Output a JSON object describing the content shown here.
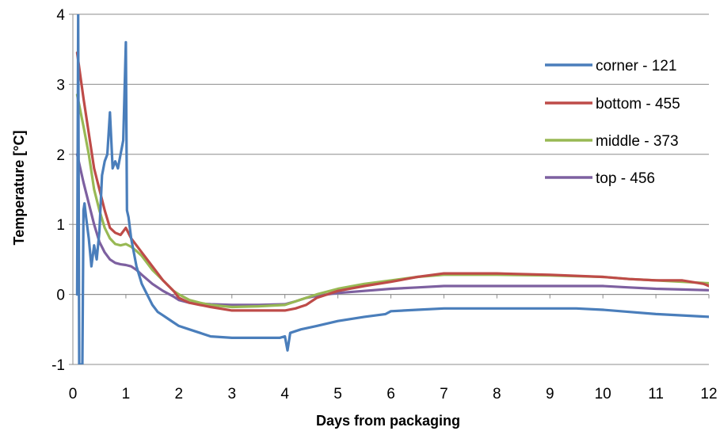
{
  "chart_data": {
    "type": "line",
    "title": "",
    "xlabel": "Days from packaging",
    "ylabel": "Temperature [°C]",
    "xlim": [
      0,
      12
    ],
    "ylim": [
      -1,
      4
    ],
    "x_ticks": [
      "0",
      "1",
      "2",
      "3",
      "4",
      "5",
      "6",
      "7",
      "8",
      "9",
      "10",
      "11",
      "12"
    ],
    "y_ticks": [
      "-1",
      "0",
      "1",
      "2",
      "3",
      "4"
    ],
    "grid": "horizontal",
    "legend_position": "right",
    "series": [
      {
        "name": "corner - 121",
        "color": "#4a7ebb",
        "x": [
          0.08,
          0.1,
          0.12,
          0.14,
          0.16,
          0.18,
          0.2,
          0.22,
          0.25,
          0.3,
          0.35,
          0.4,
          0.45,
          0.5,
          0.55,
          0.6,
          0.65,
          0.7,
          0.75,
          0.8,
          0.85,
          0.9,
          0.95,
          1.0,
          1.02,
          1.05,
          1.1,
          1.2,
          1.3,
          1.4,
          1.5,
          1.6,
          1.7,
          1.8,
          1.9,
          2.0,
          2.2,
          2.4,
          2.6,
          3.0,
          3.5,
          3.9,
          4.0,
          4.05,
          4.1,
          4.3,
          4.6,
          5.0,
          5.5,
          5.9,
          6.0,
          6.5,
          7.0,
          7.5,
          8.0,
          8.5,
          9.0,
          9.5,
          10.0,
          10.5,
          11.0,
          11.5,
          12.0
        ],
        "values": [
          0.0,
          4.0,
          -1.0,
          -1.0,
          -1.0,
          -1.0,
          1.2,
          1.3,
          1.1,
          0.8,
          0.4,
          0.7,
          0.5,
          0.9,
          1.7,
          1.9,
          2.0,
          2.6,
          1.8,
          1.9,
          1.8,
          2.0,
          2.2,
          3.6,
          1.2,
          1.1,
          0.8,
          0.4,
          0.15,
          0.0,
          -0.15,
          -0.25,
          -0.3,
          -0.35,
          -0.4,
          -0.45,
          -0.5,
          -0.55,
          -0.6,
          -0.62,
          -0.62,
          -0.62,
          -0.6,
          -0.8,
          -0.55,
          -0.5,
          -0.45,
          -0.38,
          -0.32,
          -0.28,
          -0.24,
          -0.22,
          -0.2,
          -0.2,
          -0.2,
          -0.2,
          -0.2,
          -0.2,
          -0.22,
          -0.25,
          -0.28,
          -0.3,
          -0.32
        ]
      },
      {
        "name": "bottom - 455",
        "color": "#be4b48",
        "x": [
          0.08,
          0.2,
          0.3,
          0.4,
          0.5,
          0.6,
          0.7,
          0.8,
          0.9,
          1.0,
          1.1,
          1.2,
          1.3,
          1.5,
          1.7,
          1.9,
          2.0,
          2.2,
          2.4,
          2.6,
          3.0,
          3.5,
          4.0,
          4.2,
          4.4,
          4.6,
          5.0,
          5.5,
          6.0,
          6.5,
          7.0,
          8.0,
          9.0,
          10.0,
          10.5,
          11.0,
          11.5,
          11.9,
          12.0
        ],
        "values": [
          3.45,
          2.8,
          2.3,
          1.8,
          1.5,
          1.2,
          0.95,
          0.88,
          0.85,
          0.95,
          0.8,
          0.7,
          0.6,
          0.4,
          0.2,
          0.05,
          -0.05,
          -0.12,
          -0.15,
          -0.18,
          -0.23,
          -0.23,
          -0.23,
          -0.2,
          -0.15,
          -0.05,
          0.05,
          0.12,
          0.18,
          0.25,
          0.3,
          0.3,
          0.28,
          0.25,
          0.22,
          0.2,
          0.2,
          0.15,
          0.12
        ]
      },
      {
        "name": "middle - 373",
        "color": "#98b954",
        "x": [
          0.08,
          0.2,
          0.3,
          0.4,
          0.5,
          0.6,
          0.7,
          0.8,
          0.9,
          1.0,
          1.1,
          1.2,
          1.3,
          1.5,
          1.7,
          1.9,
          2.0,
          2.2,
          2.4,
          2.6,
          3.0,
          3.5,
          4.0,
          4.2,
          4.4,
          4.6,
          5.0,
          5.5,
          6.0,
          6.5,
          7.0,
          8.0,
          9.0,
          10.0,
          10.5,
          11.0,
          11.5,
          12.0
        ],
        "values": [
          2.85,
          2.4,
          2.0,
          1.5,
          1.2,
          0.95,
          0.8,
          0.72,
          0.7,
          0.72,
          0.68,
          0.62,
          0.55,
          0.35,
          0.2,
          0.05,
          0.0,
          -0.08,
          -0.12,
          -0.15,
          -0.18,
          -0.17,
          -0.15,
          -0.1,
          -0.05,
          0.0,
          0.08,
          0.15,
          0.2,
          0.25,
          0.28,
          0.28,
          0.27,
          0.25,
          0.22,
          0.2,
          0.18,
          0.16
        ]
      },
      {
        "name": "top - 456",
        "color": "#7d60a0",
        "x": [
          0.08,
          0.2,
          0.3,
          0.4,
          0.5,
          0.6,
          0.7,
          0.8,
          0.9,
          1.0,
          1.1,
          1.2,
          1.3,
          1.5,
          1.7,
          1.9,
          2.0,
          2.2,
          2.4,
          2.6,
          3.0,
          3.5,
          4.0,
          4.2,
          4.4,
          4.6,
          5.0,
          5.5,
          6.0,
          6.5,
          7.0,
          8.0,
          9.0,
          10.0,
          10.5,
          11.0,
          11.5,
          12.0
        ],
        "values": [
          2.0,
          1.6,
          1.3,
          1.0,
          0.75,
          0.6,
          0.5,
          0.45,
          0.43,
          0.42,
          0.4,
          0.35,
          0.28,
          0.15,
          0.05,
          -0.03,
          -0.08,
          -0.12,
          -0.13,
          -0.14,
          -0.15,
          -0.15,
          -0.14,
          -0.1,
          -0.05,
          -0.02,
          0.02,
          0.05,
          0.08,
          0.1,
          0.12,
          0.12,
          0.12,
          0.12,
          0.1,
          0.08,
          0.07,
          0.06
        ]
      }
    ]
  }
}
